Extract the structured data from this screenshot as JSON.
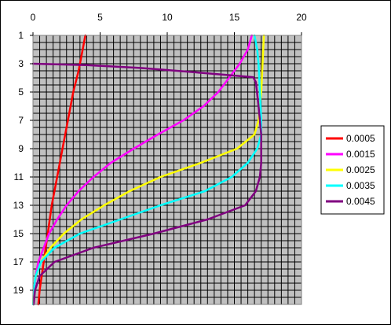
{
  "chart_data": {
    "type": "line",
    "title": "",
    "xlabel": "",
    "ylabel": "",
    "x_axis_position": "top",
    "y_axis_reversed": true,
    "xlim": [
      0,
      20
    ],
    "ylim": [
      1,
      20
    ],
    "x_ticks": [
      0,
      5,
      10,
      15,
      20
    ],
    "x_tick_labels": [
      "0",
      "5",
      "10",
      "15",
      "20"
    ],
    "y_ticks": [
      1,
      3,
      5,
      7,
      9,
      11,
      13,
      15,
      17,
      19
    ],
    "y_tick_labels": [
      "1",
      "3",
      "5",
      "7",
      "9",
      "11",
      "13",
      "15",
      "17",
      "19"
    ],
    "grid": true,
    "plot_background": "#C0C0C0",
    "grid_color": "#000000",
    "legend_position": "right",
    "series": [
      {
        "name": "0.0005",
        "color": "#FF0000",
        "points": [
          [
            3.9,
            1
          ],
          [
            3.7,
            2
          ],
          [
            3.4,
            3.5
          ],
          [
            3.0,
            5
          ],
          [
            2.6,
            7
          ],
          [
            2.2,
            9
          ],
          [
            1.8,
            11
          ],
          [
            1.4,
            13
          ],
          [
            1.1,
            15
          ],
          [
            0.8,
            17
          ],
          [
            0.5,
            19
          ],
          [
            0.4,
            20
          ]
        ]
      },
      {
        "name": "0.0015",
        "color": "#FF00FF",
        "points": [
          [
            16.3,
            1
          ],
          [
            16.0,
            2
          ],
          [
            15.4,
            3
          ],
          [
            14.6,
            4
          ],
          [
            13.8,
            5
          ],
          [
            12.7,
            6
          ],
          [
            11.2,
            7
          ],
          [
            9.3,
            8
          ],
          [
            7.5,
            9
          ],
          [
            5.8,
            10
          ],
          [
            4.5,
            11
          ],
          [
            3.4,
            12
          ],
          [
            2.5,
            13
          ],
          [
            1.8,
            14
          ],
          [
            1.2,
            15
          ],
          [
            0.8,
            16
          ],
          [
            0.4,
            17
          ],
          [
            0.2,
            18
          ],
          [
            0.1,
            19
          ],
          [
            0.05,
            20
          ]
        ]
      },
      {
        "name": "0.0025",
        "color": "#FFFF00",
        "points": [
          [
            17.2,
            1
          ],
          [
            17.1,
            3
          ],
          [
            17.0,
            5
          ],
          [
            16.9,
            6
          ],
          [
            16.8,
            7
          ],
          [
            16.5,
            8
          ],
          [
            15.2,
            9
          ],
          [
            12.5,
            10
          ],
          [
            9.5,
            11
          ],
          [
            7.2,
            12
          ],
          [
            5.3,
            13
          ],
          [
            3.6,
            14
          ],
          [
            2.3,
            15
          ],
          [
            1.3,
            16
          ],
          [
            0.6,
            17
          ],
          [
            0.2,
            18
          ],
          [
            0.05,
            19
          ],
          [
            0.02,
            20
          ]
        ]
      },
      {
        "name": "0.0035",
        "color": "#00FFFF",
        "points": [
          [
            16.5,
            1
          ],
          [
            16.7,
            2
          ],
          [
            16.8,
            3
          ],
          [
            16.9,
            5
          ],
          [
            17.0,
            7
          ],
          [
            17.0,
            8
          ],
          [
            16.7,
            9
          ],
          [
            16.0,
            10
          ],
          [
            14.8,
            11
          ],
          [
            12.8,
            12
          ],
          [
            9.5,
            13
          ],
          [
            6.5,
            14
          ],
          [
            3.5,
            15
          ],
          [
            1.6,
            16
          ],
          [
            0.6,
            17
          ],
          [
            0.2,
            18
          ],
          [
            0.05,
            19
          ],
          [
            0.02,
            20
          ]
        ]
      },
      {
        "name": "0.0045",
        "color": "#800080",
        "points": [
          [
            0,
            3
          ],
          [
            4,
            3.1
          ],
          [
            8,
            3.3
          ],
          [
            12,
            3.6
          ],
          [
            14.5,
            3.8
          ],
          [
            16.4,
            3.95
          ],
          [
            16.6,
            4.3
          ],
          [
            16.8,
            6
          ],
          [
            17.0,
            8
          ],
          [
            17.0,
            10
          ],
          [
            16.9,
            11
          ],
          [
            16.6,
            12
          ],
          [
            15.8,
            13
          ],
          [
            13.0,
            14
          ],
          [
            9.0,
            15
          ],
          [
            4.5,
            16
          ],
          [
            1.6,
            17
          ],
          [
            0.5,
            18
          ],
          [
            0.15,
            19
          ],
          [
            0.05,
            20
          ]
        ]
      }
    ]
  }
}
